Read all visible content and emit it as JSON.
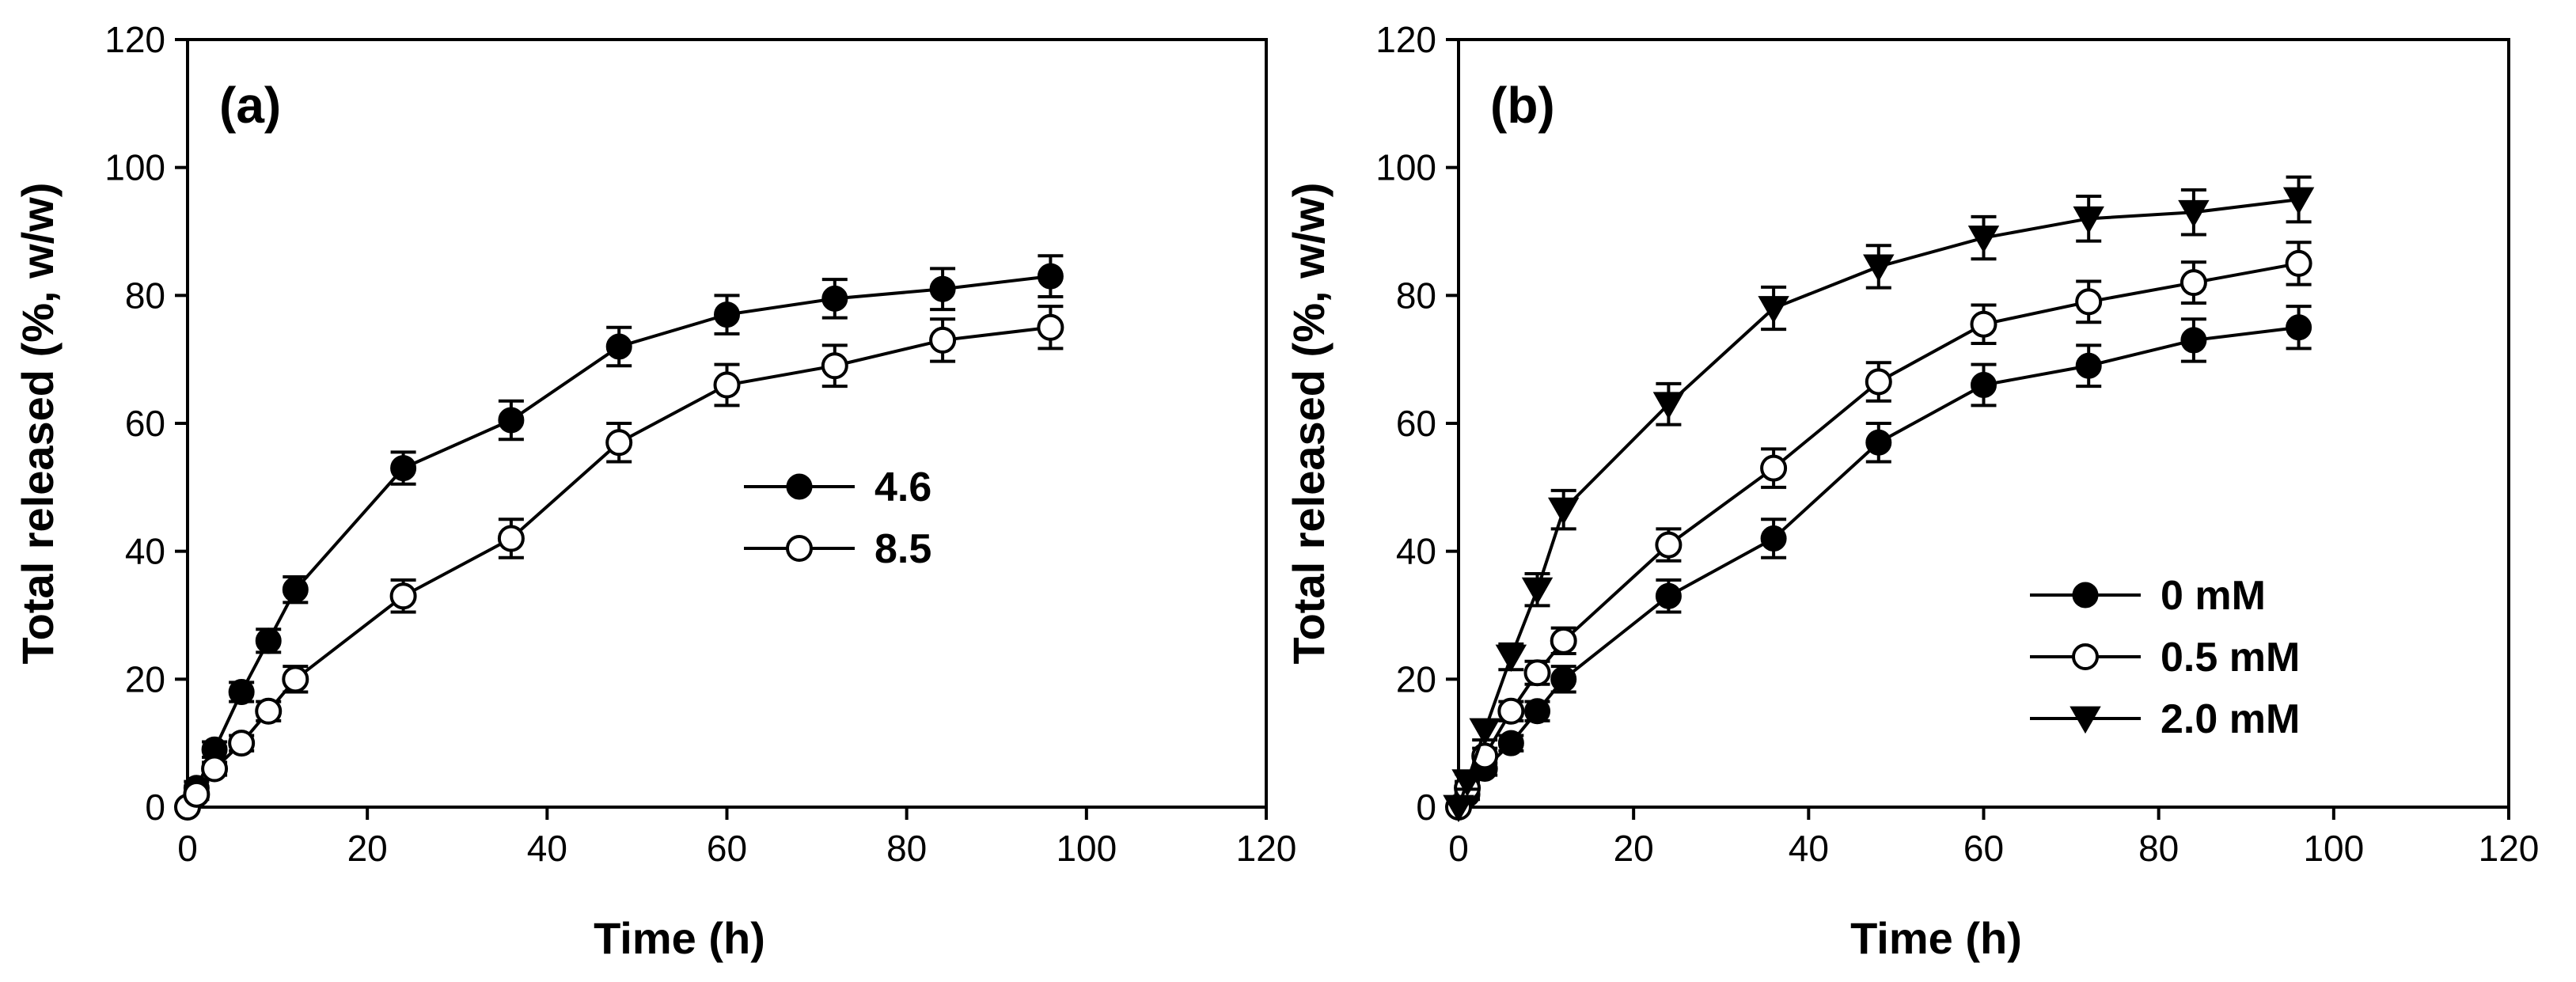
{
  "chart_data": [
    {
      "type": "line",
      "panel_label": "(a)",
      "xlabel": "Time (h)",
      "ylabel": "Total released (%, w/w)",
      "xlim": [
        0,
        120
      ],
      "ylim": [
        0,
        120
      ],
      "xticks": [
        0,
        20,
        40,
        60,
        80,
        100,
        120
      ],
      "yticks": [
        0,
        20,
        40,
        60,
        80,
        100,
        120
      ],
      "grid": false,
      "legend_position": "center-right",
      "x": [
        0,
        1,
        3,
        6,
        9,
        12,
        24,
        36,
        48,
        60,
        72,
        84,
        96
      ],
      "series": [
        {
          "name": "4.6",
          "marker": "filled-circle",
          "values": [
            0,
            3,
            9,
            18,
            26,
            34,
            53,
            60.5,
            72,
            77,
            79.5,
            81,
            83
          ],
          "errors": [
            0,
            1,
            1.2,
            1.5,
            1.8,
            2,
            2.5,
            3,
            3,
            3,
            3,
            3.2,
            3.2
          ]
        },
        {
          "name": "8.5",
          "marker": "open-circle",
          "values": [
            0,
            2,
            6,
            10,
            15,
            20,
            33,
            42,
            57,
            66,
            69,
            73,
            75
          ],
          "errors": [
            0,
            0.8,
            1,
            1.2,
            1.5,
            2,
            2.5,
            3,
            3,
            3.2,
            3.2,
            3.3,
            3.3
          ]
        }
      ]
    },
    {
      "type": "line",
      "panel_label": "(b)",
      "xlabel": "Time (h)",
      "ylabel": "Total released (%, w/w)",
      "xlim": [
        0,
        120
      ],
      "ylim": [
        0,
        120
      ],
      "xticks": [
        0,
        20,
        40,
        60,
        80,
        100,
        120
      ],
      "yticks": [
        0,
        20,
        40,
        60,
        80,
        100,
        120
      ],
      "grid": false,
      "legend_position": "bottom-right",
      "x": [
        0,
        1,
        3,
        6,
        9,
        12,
        24,
        36,
        48,
        60,
        72,
        84,
        96
      ],
      "series": [
        {
          "name": "0 mM",
          "marker": "filled-circle",
          "values": [
            0,
            2,
            6,
            10,
            15,
            20,
            33,
            42,
            57,
            66,
            69,
            73,
            75
          ],
          "errors": [
            0,
            0.8,
            1,
            1.2,
            1.5,
            2,
            2.5,
            3,
            3,
            3.2,
            3.2,
            3.3,
            3.3
          ]
        },
        {
          "name": "0.5 mM",
          "marker": "open-circle",
          "values": [
            0,
            3,
            8,
            15,
            21,
            26,
            41,
            53,
            66.5,
            75.5,
            79,
            82,
            85
          ],
          "errors": [
            0,
            1,
            1.2,
            1.5,
            1.8,
            2,
            2.5,
            3,
            3,
            3,
            3.2,
            3.2,
            3.3
          ]
        },
        {
          "name": "2.0 mM",
          "marker": "filled-triangle-down",
          "values": [
            0,
            4,
            12,
            23.5,
            34,
            46.5,
            63,
            78,
            84.5,
            89,
            92,
            93,
            95
          ],
          "errors": [
            0,
            1.2,
            1.5,
            2,
            2.5,
            3,
            3.2,
            3.3,
            3.3,
            3.3,
            3.5,
            3.5,
            3.5
          ]
        }
      ]
    }
  ]
}
